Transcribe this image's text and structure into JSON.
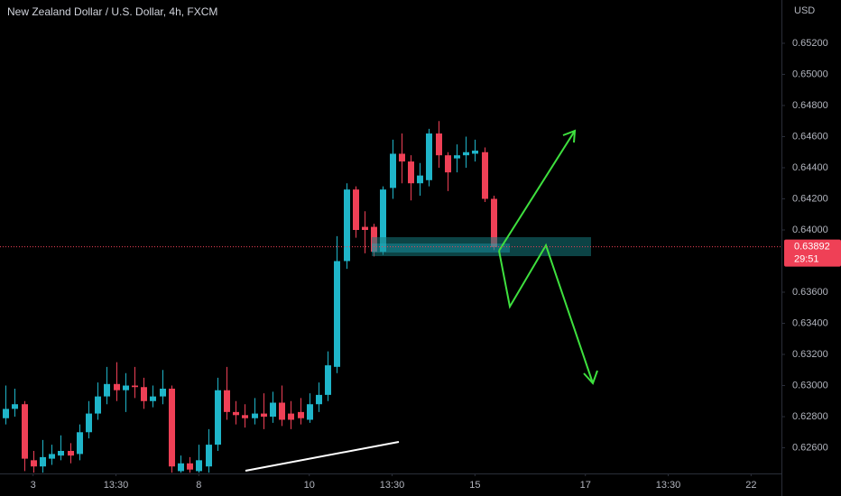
{
  "chart_data": {
    "type": "candlestick",
    "title": "New Zealand Dollar / U.S. Dollar, 4h, FXCM",
    "currency": "USD",
    "up_color": "#1fb5c9",
    "down_color": "#ef4056",
    "x": [
      0,
      1,
      2,
      3,
      4,
      5,
      6,
      7,
      8,
      9,
      10,
      11,
      12,
      13,
      14,
      15,
      16,
      17,
      18,
      19,
      20,
      21,
      22,
      23,
      24,
      25,
      26,
      27,
      28,
      29,
      30,
      31,
      32,
      33,
      34,
      35,
      36,
      37,
      38,
      39,
      40,
      41,
      42,
      43,
      44,
      45,
      46,
      47,
      48,
      49,
      50,
      51,
      52,
      53
    ],
    "open": [
      0.6279,
      0.6285,
      0.6288,
      0.6252,
      0.6248,
      0.6253,
      0.6255,
      0.6258,
      0.6256,
      0.627,
      0.6282,
      0.6293,
      0.6301,
      0.6297,
      0.63,
      0.6299,
      0.629,
      0.6293,
      0.6298,
      0.6245,
      0.625,
      0.6245,
      0.6248,
      0.6262,
      0.6297,
      0.6283,
      0.6281,
      0.6279,
      0.6282,
      0.628,
      0.6289,
      0.6282,
      0.6283,
      0.6278,
      0.6288,
      0.6294,
      0.6312,
      0.638,
      0.6426,
      0.6402,
      0.6402,
      0.6386,
      0.6427,
      0.6449,
      0.6444,
      0.643,
      0.6432,
      0.6462,
      0.6448,
      0.6446,
      0.6448,
      0.6449,
      0.645,
      0.642
    ],
    "high": [
      0.63,
      0.6298,
      0.629,
      0.6258,
      0.6265,
      0.6262,
      0.6268,
      0.6263,
      0.6275,
      0.629,
      0.6302,
      0.6312,
      0.6315,
      0.6308,
      0.6312,
      0.6305,
      0.63,
      0.631,
      0.63,
      0.6255,
      0.6254,
      0.6262,
      0.6272,
      0.6305,
      0.6312,
      0.629,
      0.6288,
      0.6292,
      0.6295,
      0.6296,
      0.63,
      0.629,
      0.6292,
      0.6295,
      0.6302,
      0.6322,
      0.6396,
      0.643,
      0.6428,
      0.6412,
      0.6404,
      0.6428,
      0.6458,
      0.6462,
      0.6448,
      0.6443,
      0.6465,
      0.647,
      0.645,
      0.6455,
      0.646,
      0.6458,
      0.6453,
      0.6422
    ],
    "low": [
      0.6275,
      0.628,
      0.6245,
      0.6244,
      0.6244,
      0.6249,
      0.6252,
      0.625,
      0.6252,
      0.6266,
      0.6278,
      0.6288,
      0.629,
      0.6283,
      0.6292,
      0.6285,
      0.6286,
      0.6288,
      0.6244,
      0.6244,
      0.6244,
      0.6244,
      0.6244,
      0.6258,
      0.6278,
      0.6275,
      0.6273,
      0.6275,
      0.6272,
      0.6276,
      0.6274,
      0.6272,
      0.6275,
      0.6276,
      0.6283,
      0.629,
      0.6308,
      0.6375,
      0.6395,
      0.6385,
      0.6383,
      0.6384,
      0.642,
      0.643,
      0.6419,
      0.6422,
      0.6428,
      0.644,
      0.6425,
      0.6437,
      0.644,
      0.6444,
      0.6418,
      0.6387
    ],
    "close": [
      0.6285,
      0.6288,
      0.6253,
      0.6248,
      0.6254,
      0.6256,
      0.6258,
      0.6255,
      0.627,
      0.6282,
      0.6293,
      0.6301,
      0.6297,
      0.63,
      0.6299,
      0.629,
      0.6293,
      0.6298,
      0.6248,
      0.625,
      0.6246,
      0.6252,
      0.6262,
      0.6297,
      0.6283,
      0.6281,
      0.6279,
      0.6282,
      0.628,
      0.6289,
      0.6278,
      0.6278,
      0.6279,
      0.6288,
      0.6294,
      0.6313,
      0.638,
      0.6426,
      0.64,
      0.64,
      0.6386,
      0.6426,
      0.6449,
      0.6444,
      0.643,
      0.6435,
      0.6462,
      0.6448,
      0.6437,
      0.6448,
      0.645,
      0.6451,
      0.642,
      0.6389
    ],
    "xlim": [
      -0.6,
      84.3
    ],
    "xticks": [
      {
        "value": 3,
        "label": "3"
      },
      {
        "value": 12,
        "label": "13:30"
      },
      {
        "value": 21,
        "label": "8"
      },
      {
        "value": 33,
        "label": "10"
      },
      {
        "value": 42,
        "label": "13:30"
      },
      {
        "value": 51,
        "label": "15"
      },
      {
        "value": 63,
        "label": "17"
      },
      {
        "value": 72,
        "label": "13:30"
      },
      {
        "value": 81,
        "label": "22"
      }
    ],
    "ylim": [
      0.62435,
      0.65478
    ],
    "yticks": [
      {
        "value": 0.652,
        "label": "0.65200"
      },
      {
        "value": 0.65,
        "label": "0.65000"
      },
      {
        "value": 0.648,
        "label": "0.64800"
      },
      {
        "value": 0.646,
        "label": "0.64600"
      },
      {
        "value": 0.644,
        "label": "0.64400"
      },
      {
        "value": 0.642,
        "label": "0.64200"
      },
      {
        "value": 0.64,
        "label": "0.64000"
      },
      {
        "value": 0.636,
        "label": "0.63600"
      },
      {
        "value": 0.634,
        "label": "0.63400"
      },
      {
        "value": 0.632,
        "label": "0.63200"
      },
      {
        "value": 0.63,
        "label": "0.63000"
      },
      {
        "value": 0.628,
        "label": "0.62800"
      },
      {
        "value": 0.626,
        "label": "0.62600"
      }
    ],
    "last_price": 0.63892,
    "countdown": "29:51"
  }
}
